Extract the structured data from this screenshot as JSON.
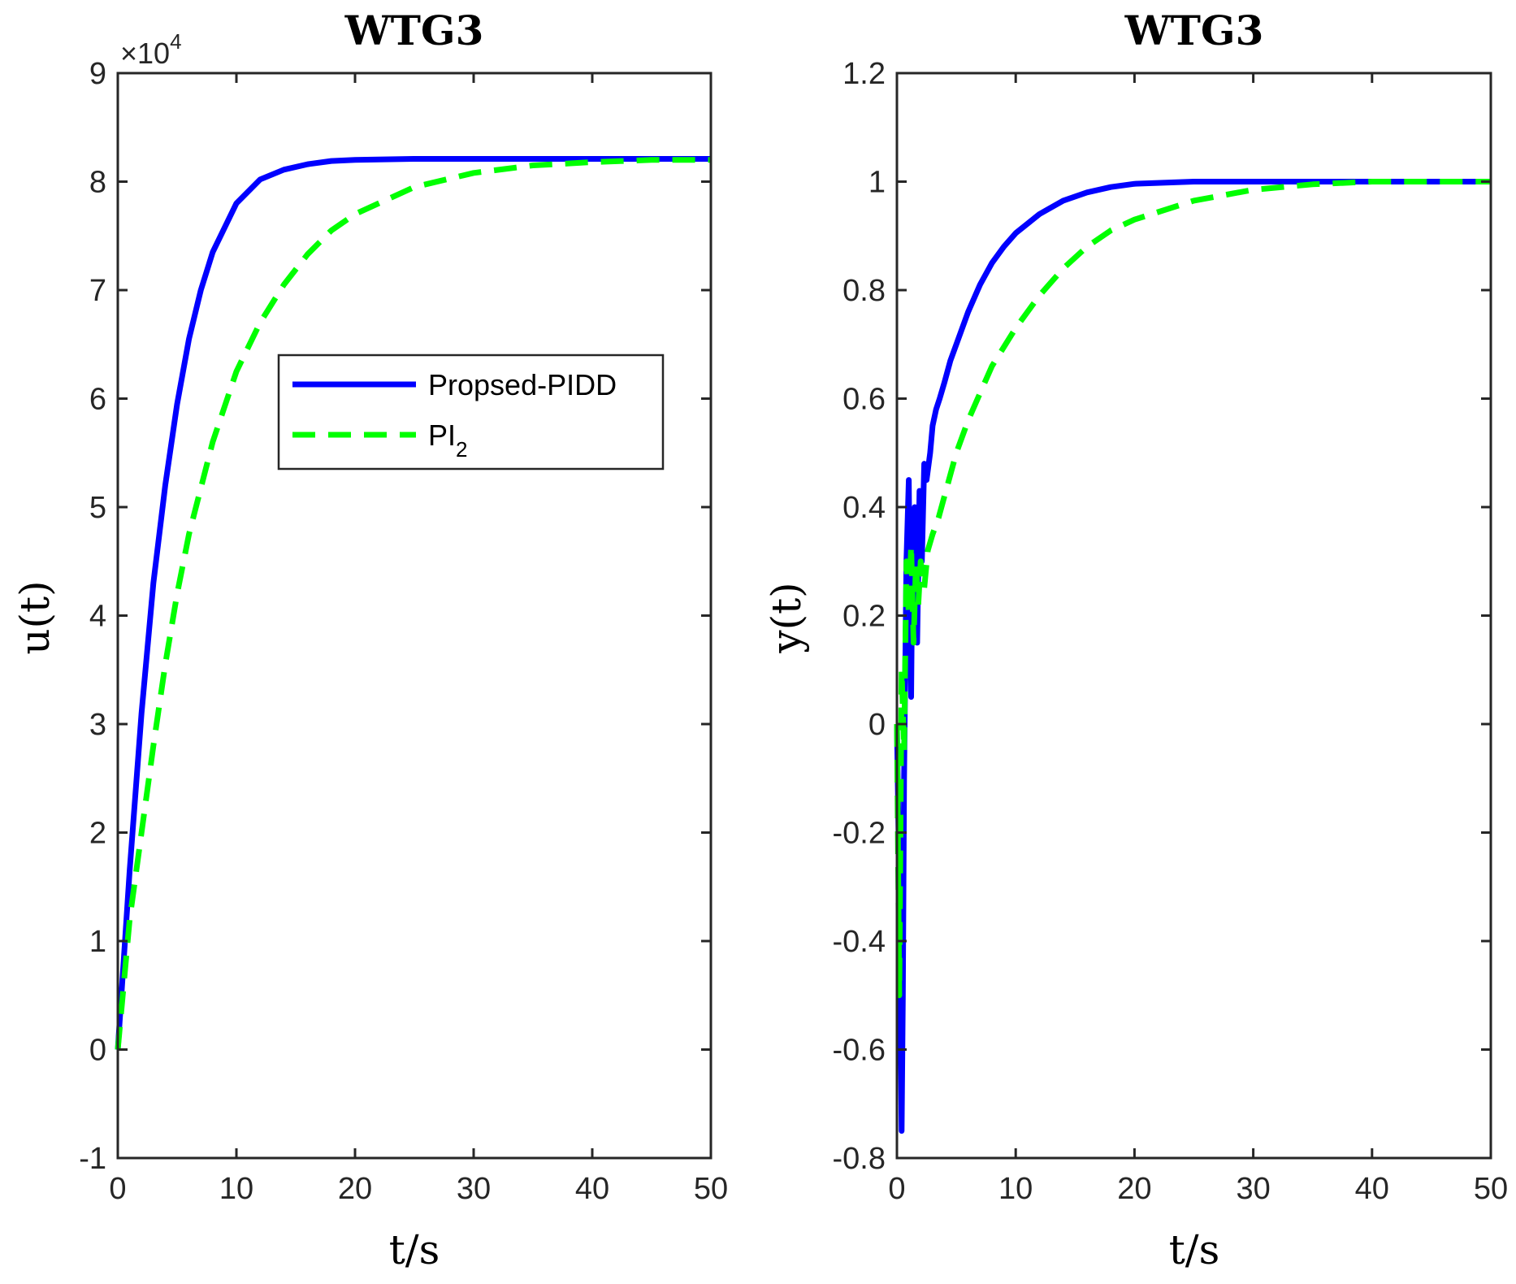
{
  "chart_data": [
    {
      "type": "line",
      "title": "WTG3",
      "xlabel": "t/s",
      "ylabel": "u(t)",
      "xlim": [
        0,
        50
      ],
      "ylim": [
        -10000,
        90000
      ],
      "exponent_label": "×10",
      "exponent_power": "4",
      "xticks": [
        "0",
        "10",
        "20",
        "30",
        "40",
        "50"
      ],
      "yticks": [
        "-1",
        "0",
        "1",
        "2",
        "3",
        "4",
        "5",
        "6",
        "7",
        "8",
        "9"
      ],
      "legend": {
        "position": "upper-middle",
        "entries": [
          {
            "label": "Propsed-PIDD",
            "style": "solid"
          },
          {
            "label": "PI",
            "subscript": "2",
            "style": "dashed"
          }
        ]
      },
      "series": [
        {
          "name": "Propsed-PIDD",
          "color": "#0000ff",
          "dash": "solid",
          "x": [
            0,
            1,
            2,
            3,
            4,
            5,
            6,
            7,
            8,
            10,
            12,
            14,
            16,
            18,
            20,
            25,
            30,
            40,
            50
          ],
          "y": [
            0,
            16500,
            31000,
            43000,
            52000,
            59500,
            65500,
            70000,
            73500,
            78000,
            80200,
            81100,
            81600,
            81900,
            82000,
            82100,
            82100,
            82100,
            82100
          ]
        },
        {
          "name": "PI2",
          "color": "#00ff00",
          "dash": "dashed",
          "x": [
            0,
            1,
            2,
            3,
            4,
            5,
            6,
            8,
            10,
            12,
            14,
            16,
            18,
            20,
            25,
            30,
            35,
            40,
            45,
            50
          ],
          "y": [
            0,
            12000,
            20000,
            28000,
            35500,
            42000,
            47500,
            56000,
            62500,
            67000,
            70500,
            73300,
            75500,
            77000,
            79500,
            80800,
            81500,
            81800,
            82000,
            82000
          ]
        }
      ]
    },
    {
      "type": "line",
      "title": "WTG3",
      "xlabel": "t/s",
      "ylabel": "y(t)",
      "xlim": [
        0,
        50
      ],
      "ylim": [
        -0.8,
        1.2
      ],
      "xticks": [
        "0",
        "10",
        "20",
        "30",
        "40",
        "50"
      ],
      "yticks": [
        "-0.8",
        "-0.6",
        "-0.4",
        "-0.2",
        "0",
        "0.2",
        "0.4",
        "0.6",
        "0.8",
        "1",
        "1.2"
      ],
      "series": [
        {
          "name": "Propsed-PIDD",
          "color": "#0000ff",
          "dash": "solid",
          "x": [
            0,
            0.2,
            0.4,
            0.5,
            0.6,
            0.8,
            1.0,
            1.1,
            1.2,
            1.3,
            1.5,
            1.7,
            1.9,
            2.1,
            2.3,
            2.5,
            2.8,
            3.0,
            3.3,
            3.6,
            4.0,
            4.5,
            5,
            6,
            7,
            8,
            9,
            10,
            12,
            14,
            16,
            18,
            20,
            25,
            30,
            40,
            50
          ],
          "y": [
            0,
            -0.3,
            -0.75,
            -0.5,
            -0.1,
            0.3,
            0.45,
            0.2,
            0.05,
            0.3,
            0.4,
            0.15,
            0.43,
            0.3,
            0.48,
            0.45,
            0.5,
            0.55,
            0.58,
            0.6,
            0.63,
            0.67,
            0.7,
            0.76,
            0.81,
            0.85,
            0.88,
            0.905,
            0.94,
            0.965,
            0.98,
            0.99,
            0.996,
            1.0,
            1.0,
            1.0,
            1.0
          ]
        },
        {
          "name": "PI2",
          "color": "#00ff00",
          "dash": "dashed",
          "x": [
            0,
            0.2,
            0.4,
            0.6,
            0.8,
            1.0,
            1.2,
            1.4,
            1.6,
            1.8,
            2.0,
            2.3,
            2.6,
            3.0,
            3.5,
            4,
            5,
            6,
            7,
            8,
            10,
            12,
            14,
            16,
            18,
            20,
            25,
            30,
            35,
            40,
            45,
            50
          ],
          "y": [
            0,
            -0.5,
            0.1,
            -0.05,
            0.3,
            0.2,
            0.33,
            0.15,
            0.3,
            0.22,
            0.3,
            0.25,
            0.32,
            0.35,
            0.38,
            0.42,
            0.5,
            0.56,
            0.61,
            0.66,
            0.73,
            0.79,
            0.84,
            0.88,
            0.91,
            0.93,
            0.965,
            0.985,
            0.995,
            1.0,
            1.0,
            1.0
          ]
        }
      ]
    }
  ]
}
